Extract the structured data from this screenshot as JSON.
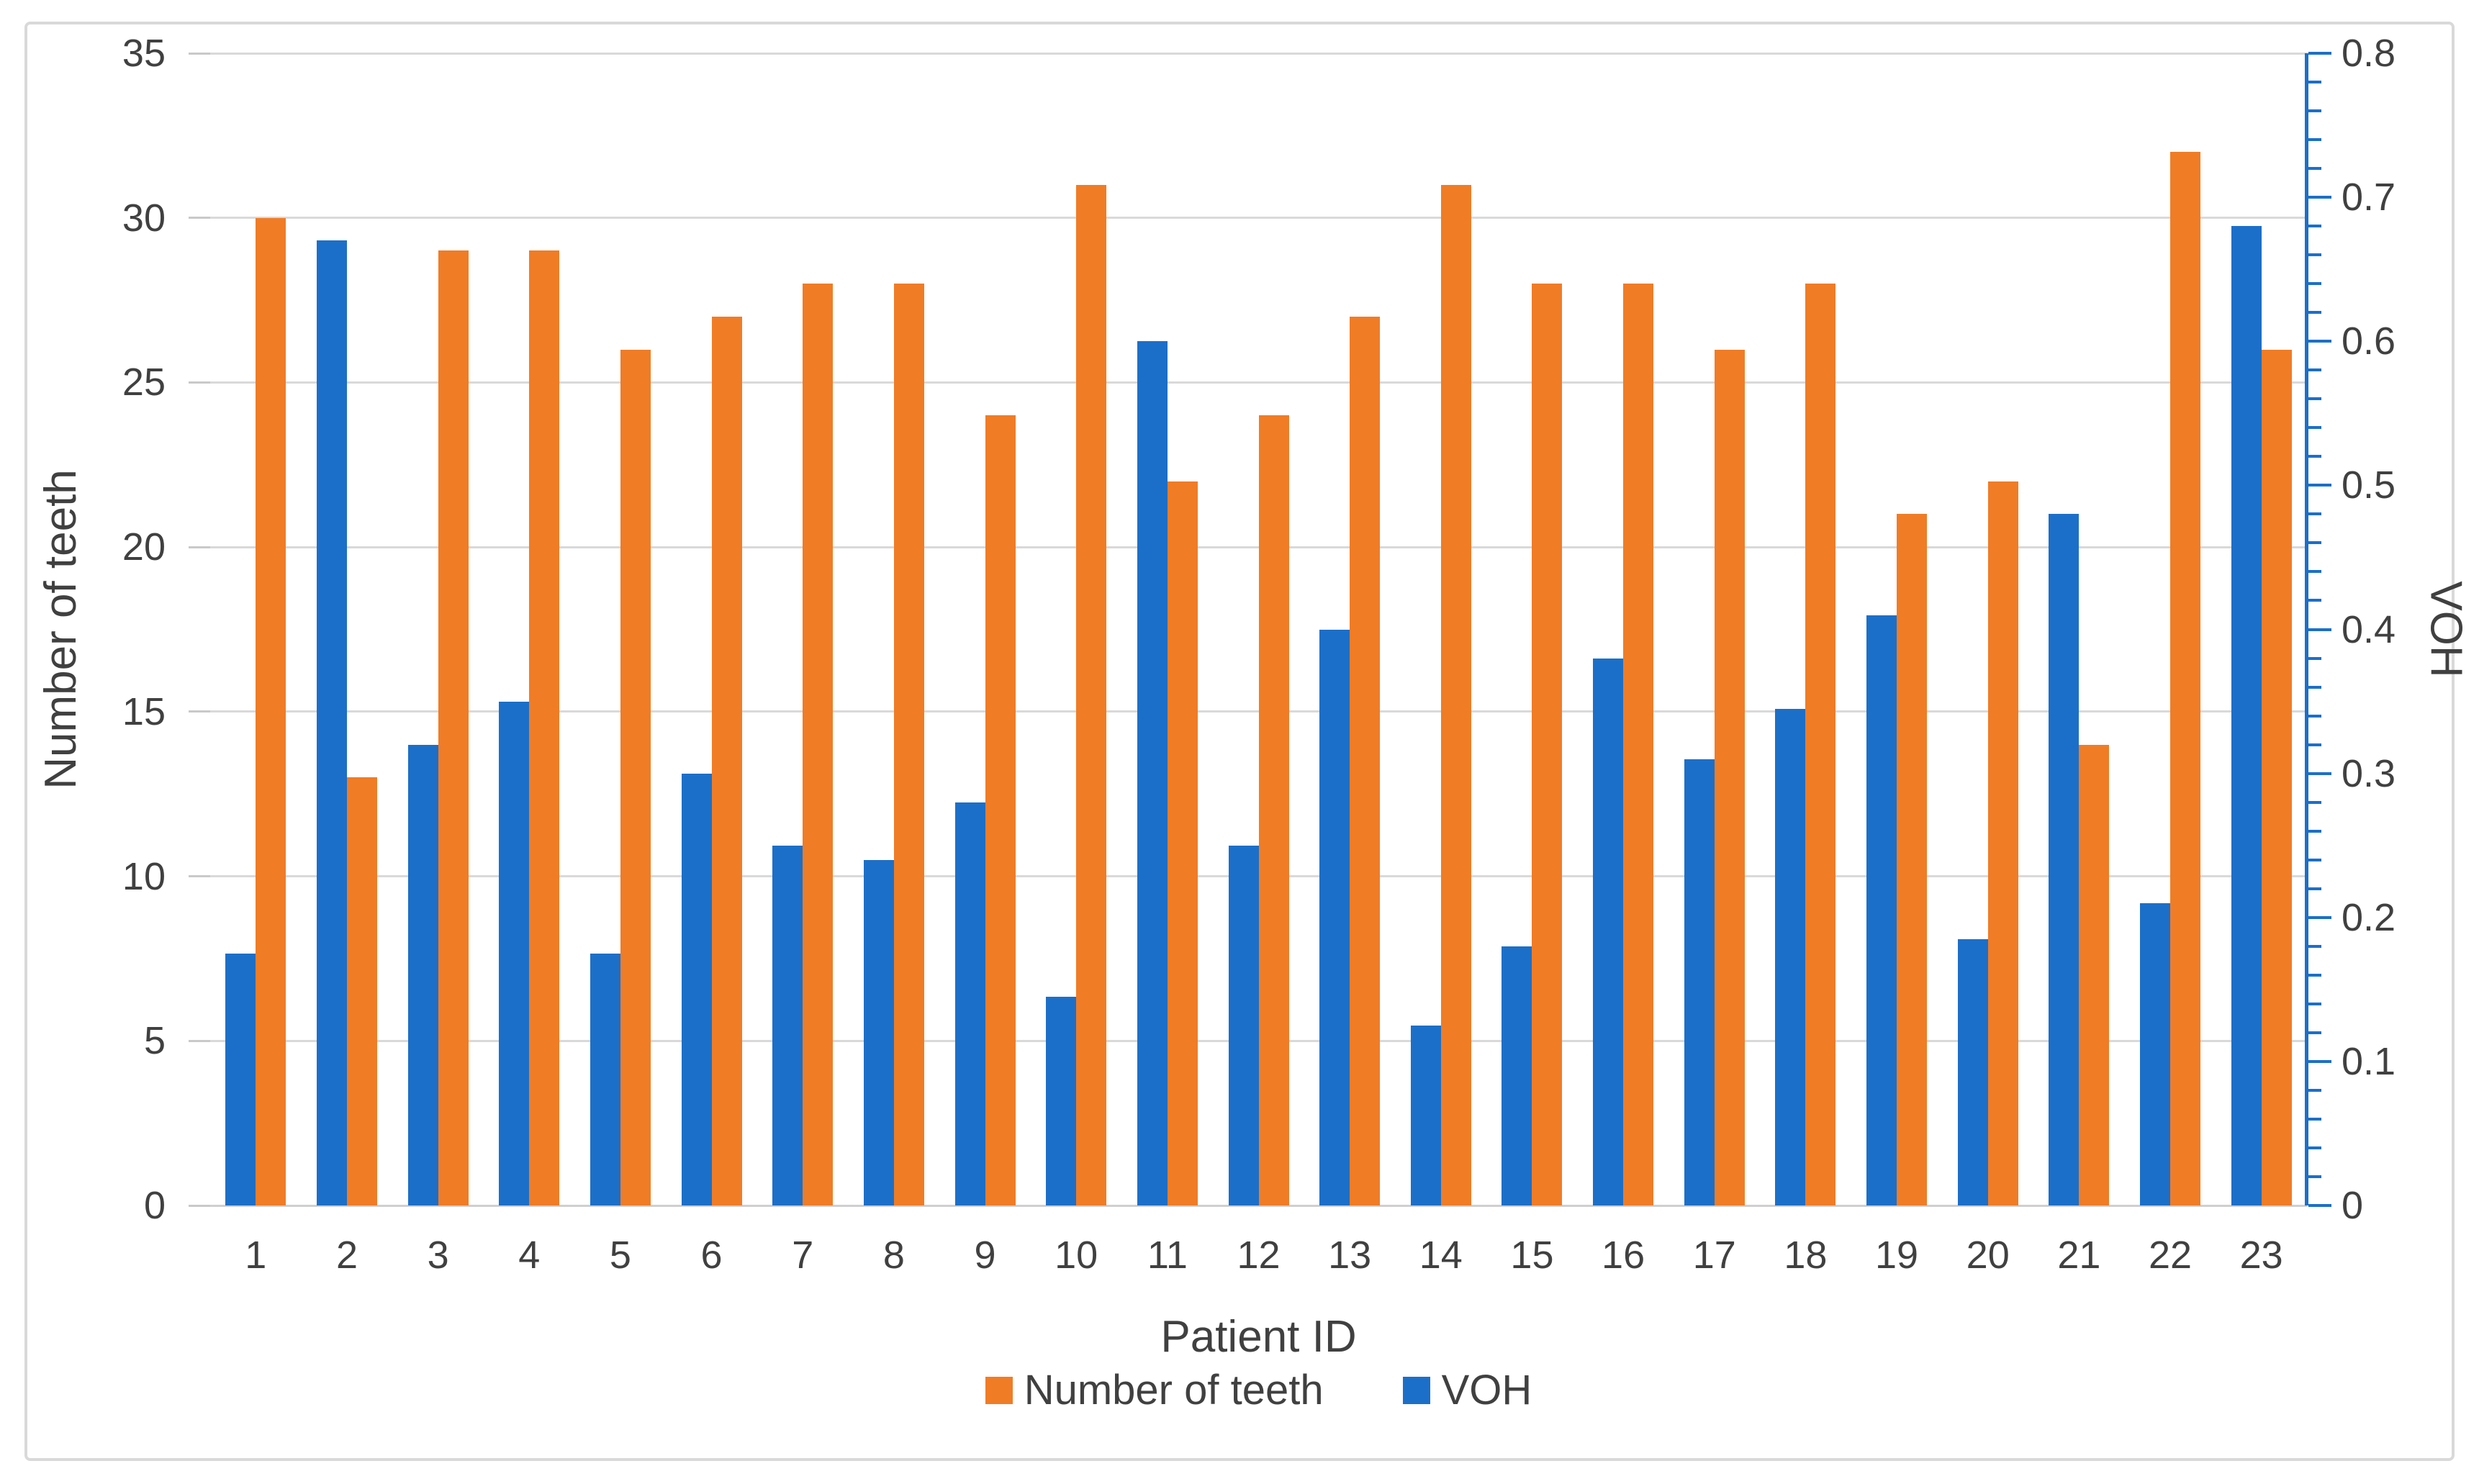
{
  "chart_data": {
    "type": "bar",
    "title": "",
    "categories": [
      1,
      2,
      3,
      4,
      5,
      6,
      7,
      8,
      9,
      10,
      11,
      12,
      13,
      14,
      15,
      16,
      17,
      18,
      19,
      20,
      21,
      22,
      23
    ],
    "series": [
      {
        "name": "Number of teeth",
        "axis": "left",
        "color": "#F07C26",
        "values": [
          30,
          13,
          29,
          29,
          26,
          27,
          28,
          28,
          24,
          31,
          22,
          24,
          27,
          31,
          28,
          28,
          26,
          28,
          21,
          22,
          14,
          32,
          26
        ]
      },
      {
        "name": "VOH",
        "axis": "right",
        "color": "#1C6FC8",
        "values": [
          0.175,
          0.67,
          0.32,
          0.35,
          0.175,
          0.3,
          0.25,
          0.24,
          0.28,
          0.145,
          0.6,
          0.25,
          0.4,
          0.125,
          0.18,
          0.38,
          0.31,
          0.345,
          0.41,
          0.185,
          0.48,
          0.21,
          0.68
        ]
      }
    ],
    "xlabel": "Patient ID",
    "ylabel_left": "Number of teeth",
    "ylabel_right": "VOH",
    "ylim_left": [
      0,
      35
    ],
    "yticks_left": [
      "35",
      "30",
      "25",
      "20",
      "15",
      "10",
      "5",
      "0"
    ],
    "ylim_right": [
      0,
      0.8
    ],
    "yticks_right": [
      "0.8",
      "0.7",
      "0.6",
      "0.5",
      "0.4",
      "0.3",
      "0.2",
      "0.1",
      "0"
    ],
    "right_minor_tick_step": 0.02,
    "grid": true,
    "legend_position": "bottom",
    "colors": {
      "gridline": "#D9D9D9",
      "right_axis": "#1C6FC8",
      "text": "#404040",
      "frame": "#D9D9D9"
    }
  }
}
